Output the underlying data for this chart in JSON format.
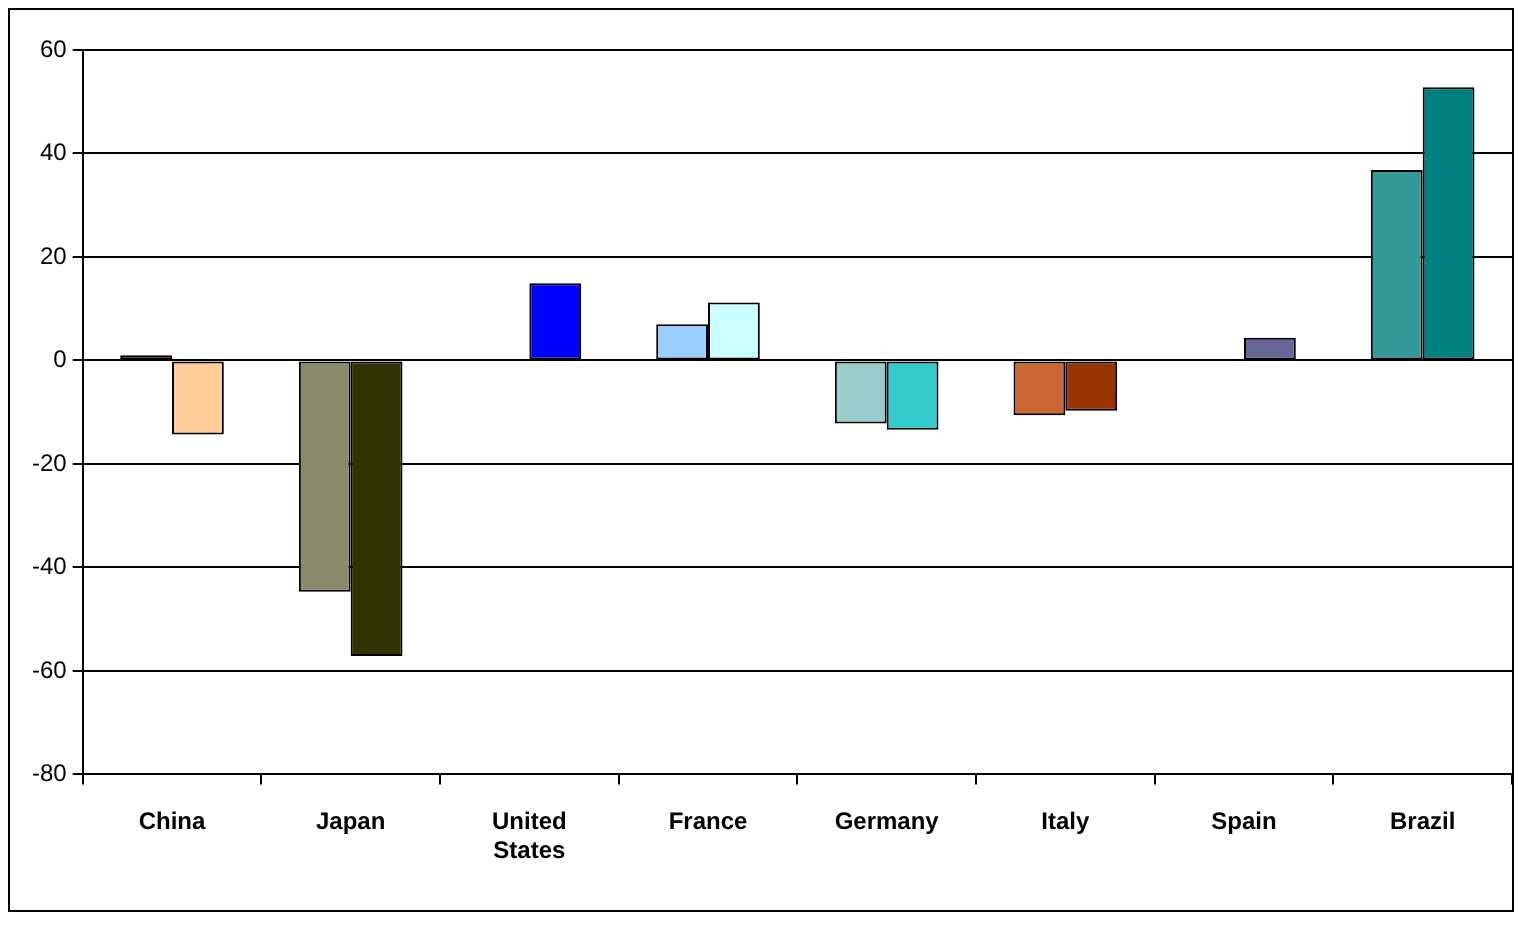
{
  "chart_data": {
    "type": "bar",
    "categories": [
      "China",
      "Japan",
      "United\nStates",
      "France",
      "Germany",
      "Italy",
      "Spain",
      "Brazil"
    ],
    "series": [
      {
        "colors": [
          "#996655",
          "#8a8a6a",
          null,
          "#99ccff",
          "#99cccc",
          "#cc6633",
          null,
          "#339999"
        ],
        "values": [
          1,
          -44.7,
          null,
          7,
          -12.2,
          -10.6,
          null,
          36.8
        ]
      },
      {
        "colors": [
          "#ffcc99",
          "#333300",
          "#0000ff",
          "#ccffff",
          "#33cccc",
          "#993300",
          "#666699",
          "#008080"
        ],
        "values": [
          -14.3,
          -57.1,
          14.9,
          11.2,
          -13.4,
          -9.7,
          4.4,
          52.8
        ]
      }
    ],
    "ylim": [
      -80,
      60
    ],
    "yticks": [
      -80,
      -60,
      -40,
      -20,
      0,
      20,
      40,
      60
    ],
    "grid": "y",
    "legend": false
  }
}
